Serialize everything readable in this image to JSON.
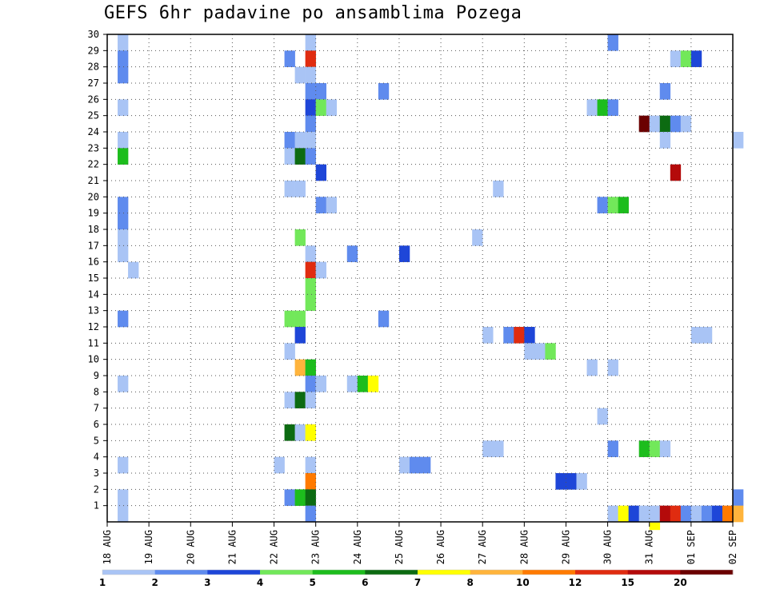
{
  "chart_data": {
    "type": "heatmap",
    "title": "GEFS 6hr padavine po ansamblima Pozega",
    "x_ticks": [
      "18 AUG",
      "19 AUG",
      "20 AUG",
      "21 AUG",
      "22 AUG",
      "23 AUG",
      "24 AUG",
      "25 AUG",
      "26 AUG",
      "27 AUG",
      "28 AUG",
      "29 AUG",
      "30 AUG",
      "31 AUG",
      "01 SEP",
      "02 SEP"
    ],
    "y_ticks": [
      "1",
      "2",
      "3",
      "4",
      "5",
      "6",
      "7",
      "8",
      "9",
      "10",
      "11",
      "12",
      "13",
      "14",
      "15",
      "16",
      "17",
      "18",
      "19",
      "20",
      "21",
      "22",
      "23",
      "24",
      "25",
      "26",
      "27",
      "28",
      "29",
      "30"
    ],
    "x_unit": "6h steps after 18 AUG 00Z",
    "x_range": [
      0,
      60
    ],
    "y_range": [
      0,
      30
    ],
    "grid": true,
    "levels": [
      1,
      2,
      3,
      4,
      5,
      6,
      7,
      8,
      10,
      12,
      15,
      20
    ],
    "colors": [
      "#a9c4f5",
      "#5f8bee",
      "#1e46d8",
      "#72e85a",
      "#1dbd1d",
      "#0c6b12",
      "#ffff00",
      "#ffb43c",
      "#ff7a00",
      "#e02c10",
      "#b40a0a",
      "#6b0000"
    ],
    "level_labels": [
      "1",
      "2",
      "3",
      "4",
      "5",
      "6",
      "7",
      "8",
      "10",
      "12",
      "15",
      "20"
    ],
    "cells": [
      [
        1,
        30,
        0
      ],
      [
        1,
        29,
        1
      ],
      [
        1,
        28,
        1
      ],
      [
        1,
        26,
        0
      ],
      [
        1,
        24,
        0
      ],
      [
        1,
        23,
        4
      ],
      [
        1,
        20,
        1
      ],
      [
        1,
        19,
        1
      ],
      [
        1,
        18,
        0
      ],
      [
        1,
        17,
        0
      ],
      [
        1,
        13,
        1
      ],
      [
        1,
        9,
        0
      ],
      [
        1,
        4,
        0
      ],
      [
        1,
        2,
        0
      ],
      [
        1,
        1,
        0
      ],
      [
        2,
        16,
        0
      ],
      [
        16,
        4,
        0
      ],
      [
        17,
        29,
        1
      ],
      [
        17,
        24,
        1
      ],
      [
        17,
        23,
        0
      ],
      [
        17,
        21,
        0
      ],
      [
        17,
        13,
        3
      ],
      [
        17,
        11,
        0
      ],
      [
        17,
        8,
        0
      ],
      [
        17,
        6,
        5
      ],
      [
        17,
        2,
        1
      ],
      [
        18,
        28,
        0
      ],
      [
        18,
        24,
        0
      ],
      [
        18,
        23,
        5
      ],
      [
        18,
        21,
        0
      ],
      [
        18,
        18,
        3
      ],
      [
        18,
        13,
        3
      ],
      [
        18,
        12,
        2
      ],
      [
        18,
        10,
        7
      ],
      [
        18,
        8,
        5
      ],
      [
        18,
        6,
        0
      ],
      [
        18,
        2,
        4
      ],
      [
        19,
        30,
        0
      ],
      [
        19,
        29,
        9
      ],
      [
        19,
        28,
        0
      ],
      [
        19,
        27,
        1
      ],
      [
        19,
        26,
        2
      ],
      [
        19,
        25,
        1
      ],
      [
        19,
        24,
        0
      ],
      [
        19,
        23,
        1
      ],
      [
        19,
        17,
        0
      ],
      [
        19,
        16,
        9
      ],
      [
        19,
        15,
        3
      ],
      [
        19,
        14,
        3
      ],
      [
        19,
        10,
        4
      ],
      [
        19,
        9,
        1
      ],
      [
        19,
        8,
        0
      ],
      [
        19,
        6,
        6
      ],
      [
        19,
        4,
        0
      ],
      [
        19,
        3,
        8
      ],
      [
        19,
        2,
        5
      ],
      [
        19,
        1,
        1
      ],
      [
        20,
        27,
        1
      ],
      [
        20,
        26,
        3
      ],
      [
        20,
        22,
        2
      ],
      [
        20,
        20,
        1
      ],
      [
        20,
        16,
        0
      ],
      [
        20,
        9,
        0
      ],
      [
        21,
        26,
        0
      ],
      [
        21,
        20,
        0
      ],
      [
        23,
        17,
        1
      ],
      [
        23,
        9,
        0
      ],
      [
        24,
        9,
        4
      ],
      [
        25,
        9,
        6
      ],
      [
        26,
        27,
        1
      ],
      [
        26,
        13,
        1
      ],
      [
        28,
        17,
        2
      ],
      [
        28,
        4,
        0
      ],
      [
        29,
        4,
        1
      ],
      [
        30,
        4,
        1
      ],
      [
        35,
        18,
        0
      ],
      [
        36,
        12,
        0
      ],
      [
        36,
        5,
        0
      ],
      [
        37,
        21,
        0
      ],
      [
        37,
        5,
        0
      ],
      [
        38,
        12,
        1
      ],
      [
        39,
        12,
        9
      ],
      [
        40,
        12,
        2
      ],
      [
        40,
        11,
        0
      ],
      [
        41,
        11,
        0
      ],
      [
        42,
        11,
        3
      ],
      [
        43,
        3,
        2
      ],
      [
        44,
        3,
        2
      ],
      [
        45,
        3,
        0
      ],
      [
        46,
        26,
        0
      ],
      [
        46,
        10,
        0
      ],
      [
        47,
        26,
        4
      ],
      [
        47,
        20,
        1
      ],
      [
        47,
        7,
        0
      ],
      [
        48,
        30,
        1
      ],
      [
        48,
        26,
        1
      ],
      [
        48,
        20,
        3
      ],
      [
        48,
        10,
        0
      ],
      [
        48,
        5,
        1
      ],
      [
        48,
        1,
        0
      ],
      [
        49,
        20,
        4
      ],
      [
        49,
        1,
        6
      ],
      [
        50,
        1,
        2
      ],
      [
        51,
        25,
        11
      ],
      [
        51,
        5,
        4
      ],
      [
        51,
        1,
        0
      ],
      [
        52,
        25,
        0
      ],
      [
        52,
        5,
        3
      ],
      [
        52,
        1,
        0
      ],
      [
        53,
        27,
        1
      ],
      [
        53,
        25,
        5
      ],
      [
        53,
        24,
        0
      ],
      [
        53,
        5,
        0
      ],
      [
        53,
        1,
        10
      ],
      [
        54,
        29,
        0
      ],
      [
        54,
        25,
        1
      ],
      [
        54,
        22,
        10
      ],
      [
        54,
        1,
        9
      ],
      [
        55,
        29,
        3
      ],
      [
        55,
        25,
        0
      ],
      [
        55,
        1,
        1
      ],
      [
        56,
        29,
        2
      ],
      [
        56,
        12,
        0
      ],
      [
        56,
        1,
        0
      ],
      [
        57,
        12,
        0
      ],
      [
        57,
        1,
        1
      ],
      [
        58,
        1,
        2
      ],
      [
        59,
        1,
        8
      ],
      [
        60,
        24,
        0
      ],
      [
        60,
        2,
        1
      ],
      [
        60,
        1,
        7
      ]
    ],
    "below_axis_cells": [
      [
        52,
        6
      ]
    ]
  }
}
